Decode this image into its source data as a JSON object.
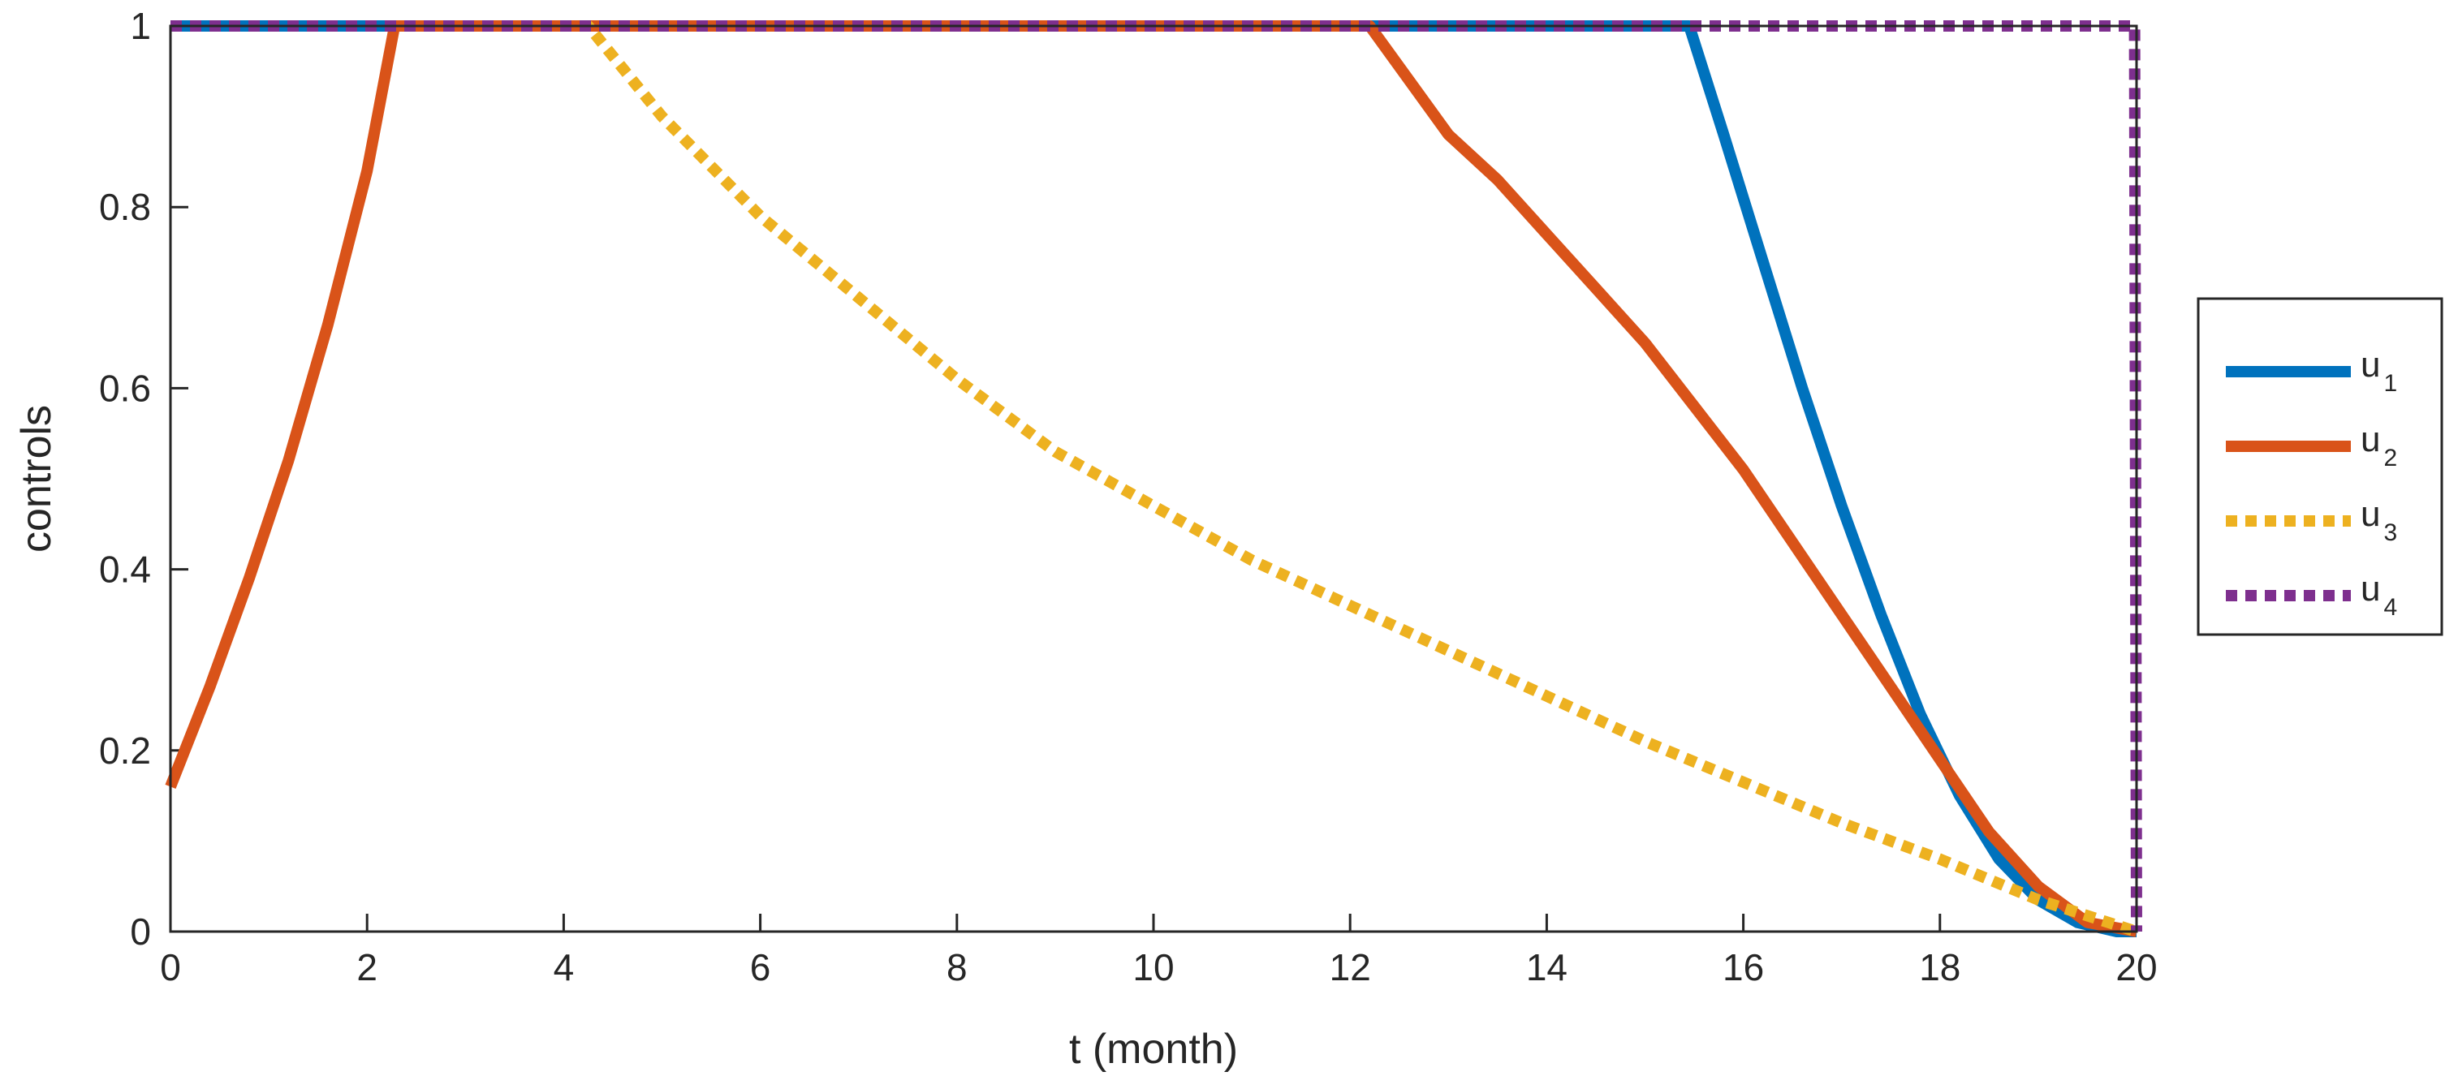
{
  "chart_data": {
    "type": "line",
    "xlabel": "t (month)",
    "ylabel": "controls",
    "xlim": [
      0,
      20
    ],
    "ylim": [
      0,
      1
    ],
    "x_ticks": [
      "0",
      "2",
      "4",
      "6",
      "8",
      "10",
      "12",
      "14",
      "16",
      "18",
      "20"
    ],
    "y_ticks": [
      "0",
      "0.2",
      "0.4",
      "0.6",
      "0.8",
      "1"
    ],
    "grid": false,
    "legend_position": "right",
    "series": [
      {
        "name": "u",
        "subscript": "1",
        "color": "#0072BD",
        "style": "solid",
        "points": [
          [
            0,
            1
          ],
          [
            15.45,
            1
          ],
          [
            15.8,
            0.88
          ],
          [
            16.2,
            0.74
          ],
          [
            16.6,
            0.6
          ],
          [
            17.0,
            0.47
          ],
          [
            17.4,
            0.35
          ],
          [
            17.8,
            0.24
          ],
          [
            18.2,
            0.15
          ],
          [
            18.6,
            0.08
          ],
          [
            19.0,
            0.035
          ],
          [
            19.4,
            0.01
          ],
          [
            19.8,
            0.0
          ],
          [
            20,
            0.0
          ]
        ]
      },
      {
        "name": "u",
        "subscript": "2",
        "color": "#D95319",
        "style": "solid",
        "points": [
          [
            0,
            0.16
          ],
          [
            0.4,
            0.27
          ],
          [
            0.8,
            0.39
          ],
          [
            1.2,
            0.52
          ],
          [
            1.6,
            0.67
          ],
          [
            2.0,
            0.84
          ],
          [
            2.28,
            1
          ],
          [
            12.2,
            1
          ],
          [
            12.6,
            0.94
          ],
          [
            13.0,
            0.88
          ],
          [
            13.5,
            0.83
          ],
          [
            14.0,
            0.77
          ],
          [
            14.5,
            0.71
          ],
          [
            15.0,
            0.65
          ],
          [
            15.5,
            0.58
          ],
          [
            16.0,
            0.51
          ],
          [
            16.5,
            0.43
          ],
          [
            17.0,
            0.35
          ],
          [
            17.5,
            0.27
          ],
          [
            18.0,
            0.19
          ],
          [
            18.5,
            0.11
          ],
          [
            19.0,
            0.05
          ],
          [
            19.5,
            0.01
          ],
          [
            20,
            0.0
          ]
        ]
      },
      {
        "name": "u",
        "subscript": "3",
        "color": "#EDB120",
        "style": "dotted",
        "points": [
          [
            0,
            1
          ],
          [
            4.25,
            1
          ],
          [
            5,
            0.9
          ],
          [
            6,
            0.79
          ],
          [
            7,
            0.7
          ],
          [
            8,
            0.61
          ],
          [
            9,
            0.53
          ],
          [
            10,
            0.47
          ],
          [
            11,
            0.41
          ],
          [
            12,
            0.36
          ],
          [
            13,
            0.31
          ],
          [
            14,
            0.26
          ],
          [
            15,
            0.21
          ],
          [
            16,
            0.165
          ],
          [
            17,
            0.12
          ],
          [
            18,
            0.08
          ],
          [
            19,
            0.035
          ],
          [
            20,
            0.0
          ]
        ]
      },
      {
        "name": "u",
        "subscript": "4",
        "color": "#7E2F8E",
        "style": "dotted",
        "points": [
          [
            0,
            1
          ],
          [
            19.98,
            1
          ],
          [
            20,
            0.0
          ]
        ]
      }
    ]
  }
}
